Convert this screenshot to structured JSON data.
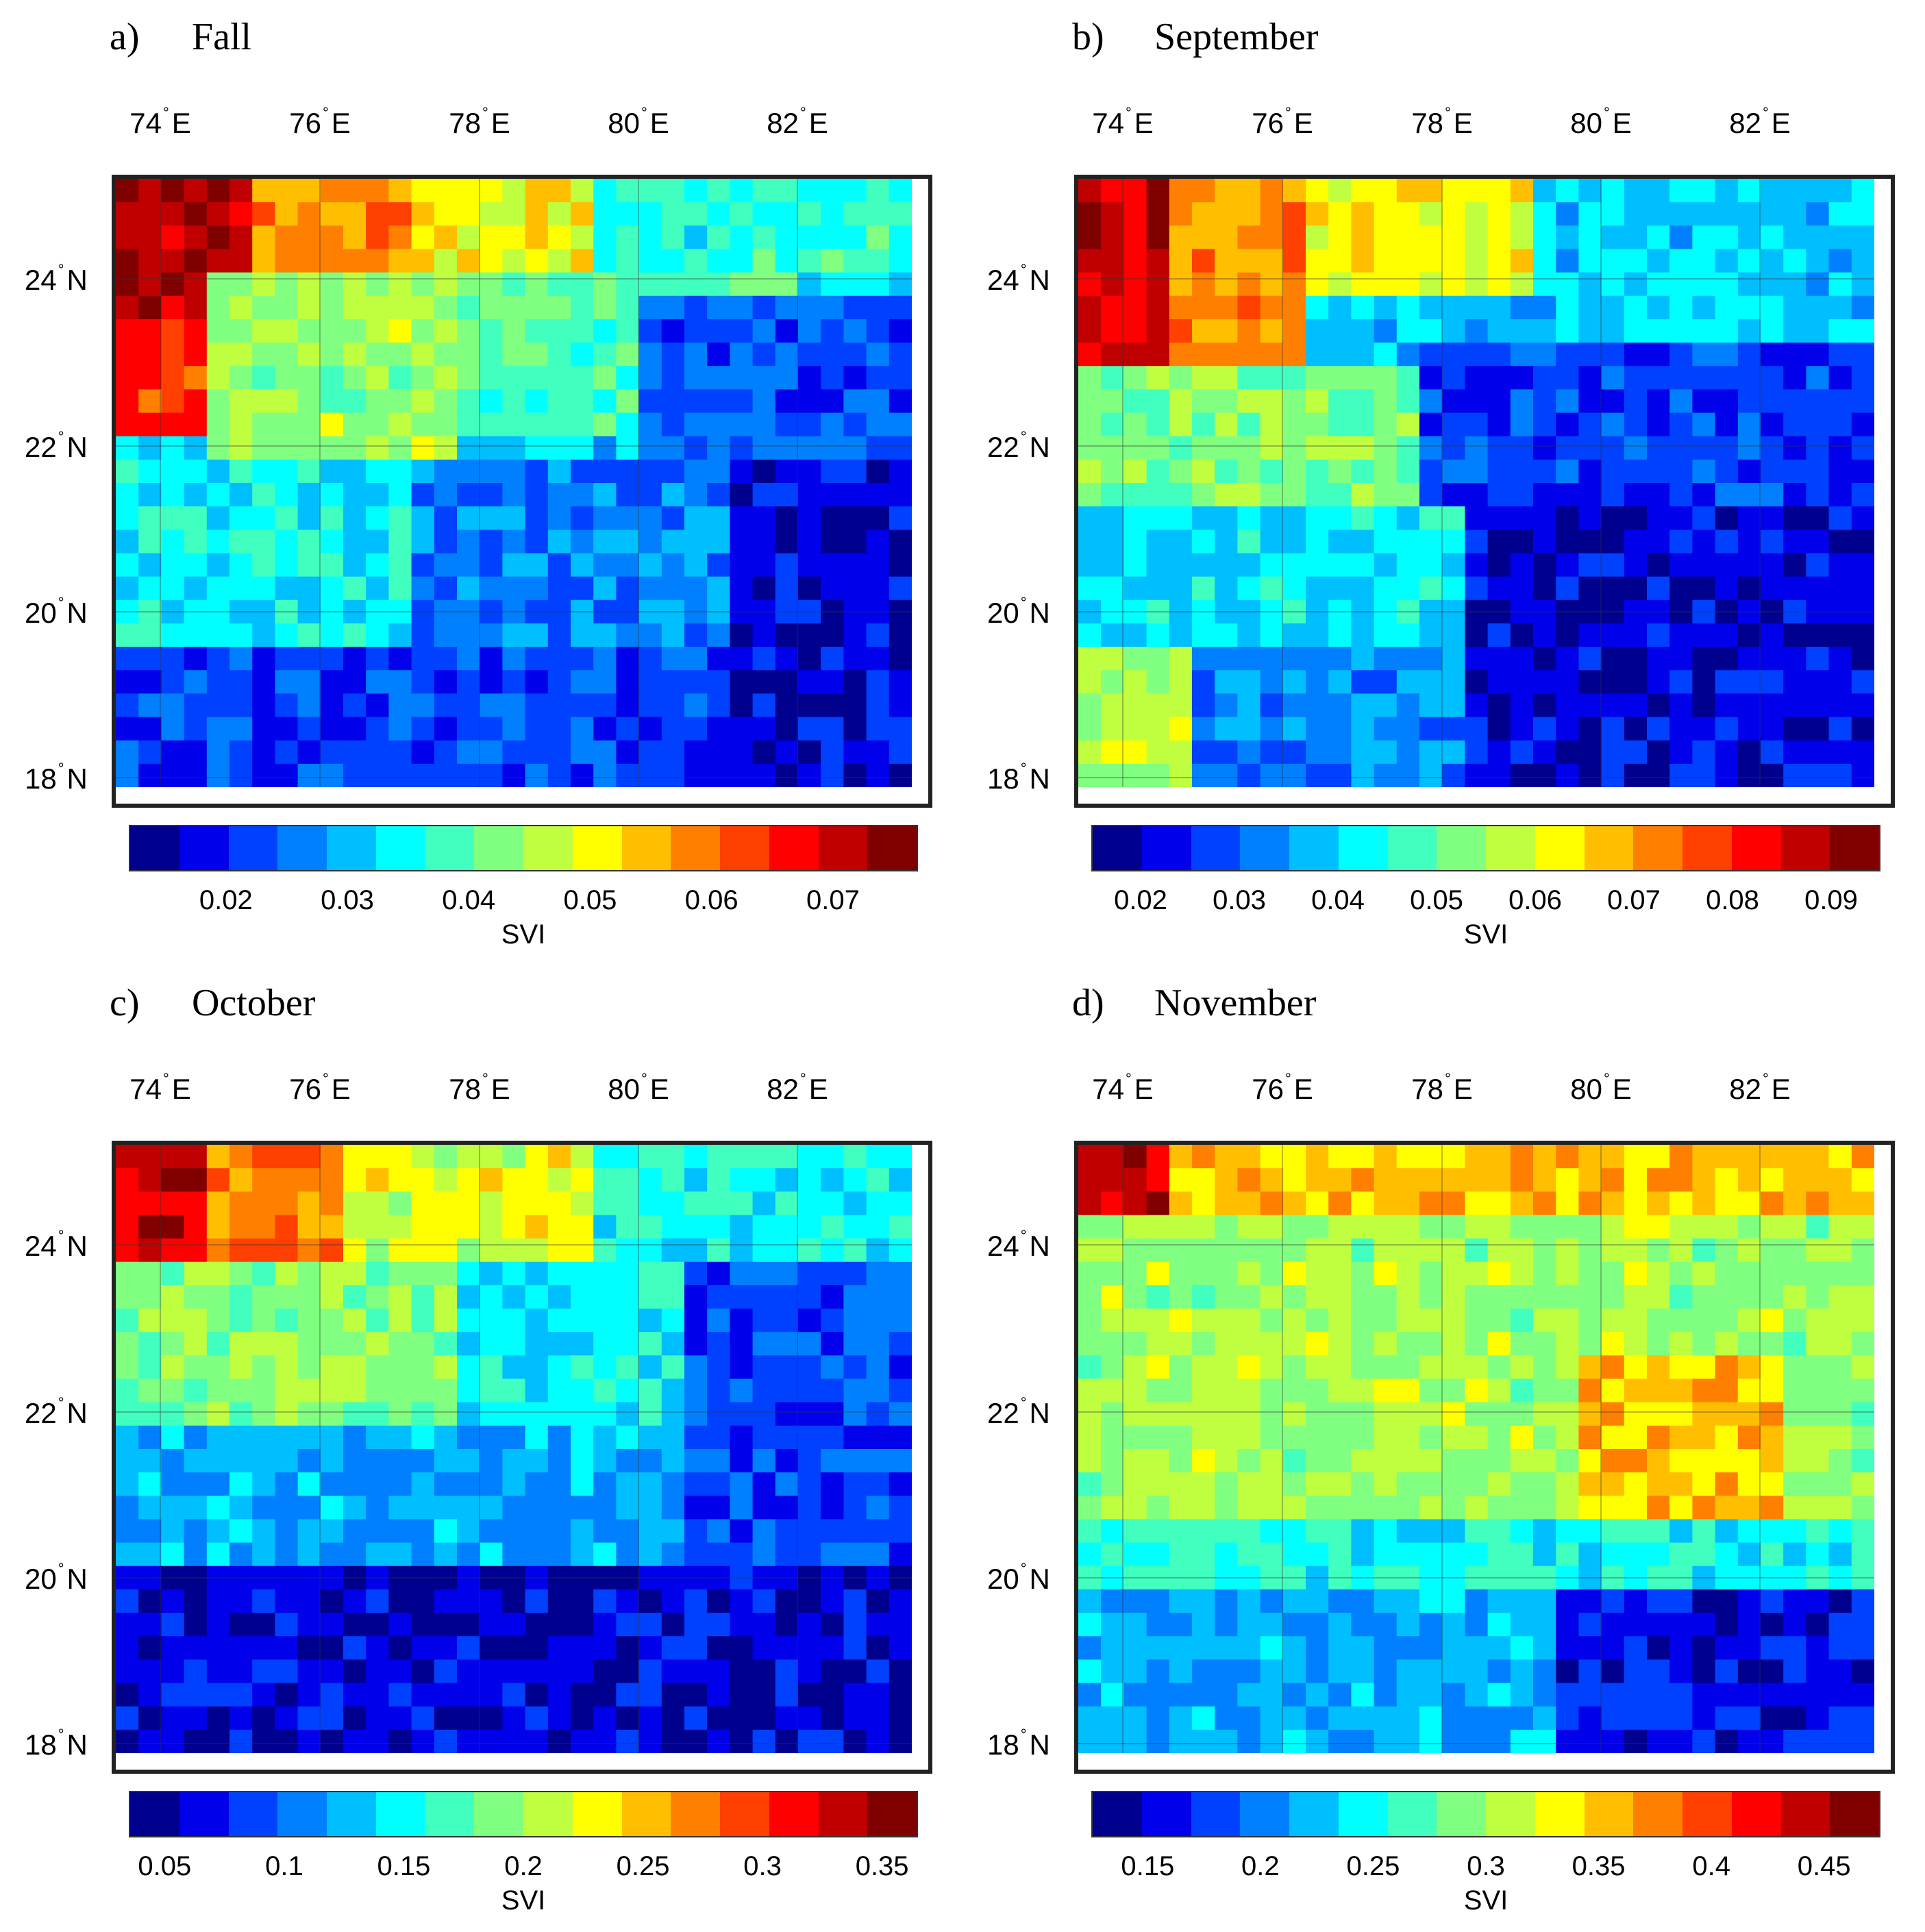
{
  "chart_data": [
    {
      "type": "heatmap",
      "panel_letter": "a)",
      "title": "Fall",
      "x_ticks": [
        "74",
        "76",
        "78",
        "80",
        "82"
      ],
      "x_unit": "E",
      "y_ticks": [
        "24",
        "22",
        "20",
        "18"
      ],
      "y_unit": "N",
      "colorbar_label": "SVI",
      "colorbar_ticks": [
        "0.02",
        "0.03",
        "0.04",
        "0.05",
        "0.06",
        "0.07"
      ],
      "colorbar_range": [
        0.012,
        0.077
      ],
      "pattern": "high in the north-west corner (~0.07), decreasing toward the south-east (~0.015)",
      "grid_regions": [
        {
          "rows": [
            0,
            5
          ],
          "cols": [
            0,
            5
          ],
          "level": 0.92
        },
        {
          "rows": [
            0,
            3
          ],
          "cols": [
            6,
            12
          ],
          "level": 0.7
        },
        {
          "rows": [
            0,
            3
          ],
          "cols": [
            13,
            20
          ],
          "level": 0.58
        },
        {
          "rows": [
            0,
            4
          ],
          "cols": [
            21,
            34
          ],
          "level": 0.38
        },
        {
          "rows": [
            6,
            10
          ],
          "cols": [
            0,
            3
          ],
          "level": 0.8
        },
        {
          "rows": [
            4,
            12
          ],
          "cols": [
            4,
            14
          ],
          "level": 0.5
        },
        {
          "rows": [
            4,
            10
          ],
          "cols": [
            15,
            22
          ],
          "level": 0.42
        },
        {
          "rows": [
            5,
            12
          ],
          "cols": [
            23,
            34
          ],
          "level": 0.18
        },
        {
          "rows": [
            12,
            20
          ],
          "cols": [
            0,
            12
          ],
          "level": 0.34
        },
        {
          "rows": [
            12,
            20
          ],
          "cols": [
            13,
            26
          ],
          "level": 0.22
        },
        {
          "rows": [
            12,
            25
          ],
          "cols": [
            27,
            34
          ],
          "level": 0.08
        },
        {
          "rows": [
            20,
            25
          ],
          "cols": [
            0,
            26
          ],
          "level": 0.16
        }
      ]
    },
    {
      "type": "heatmap",
      "panel_letter": "b)",
      "title": "September",
      "x_ticks": [
        "74",
        "76",
        "78",
        "80",
        "82"
      ],
      "x_unit": "E",
      "y_ticks": [
        "24",
        "22",
        "20",
        "18"
      ],
      "y_unit": "N",
      "colorbar_label": "SVI",
      "colorbar_ticks": [
        "0.02",
        "0.03",
        "0.04",
        "0.05",
        "0.06",
        "0.07",
        "0.08",
        "0.09"
      ],
      "colorbar_range": [
        0.015,
        0.095
      ],
      "pattern": "high in the north-west corner (~0.09), lowest in the south-east (~0.015)",
      "grid_regions": [
        {
          "rows": [
            0,
            8
          ],
          "cols": [
            0,
            3
          ],
          "level": 0.9
        },
        {
          "rows": [
            0,
            8
          ],
          "cols": [
            4,
            9
          ],
          "level": 0.7
        },
        {
          "rows": [
            0,
            4
          ],
          "cols": [
            10,
            19
          ],
          "level": 0.58
        },
        {
          "rows": [
            0,
            6
          ],
          "cols": [
            20,
            34
          ],
          "level": 0.3
        },
        {
          "rows": [
            8,
            14
          ],
          "cols": [
            0,
            14
          ],
          "level": 0.46
        },
        {
          "rows": [
            7,
            14
          ],
          "cols": [
            15,
            34
          ],
          "level": 0.14
        },
        {
          "rows": [
            14,
            20
          ],
          "cols": [
            0,
            16
          ],
          "level": 0.32
        },
        {
          "rows": [
            14,
            25
          ],
          "cols": [
            17,
            34
          ],
          "level": 0.08
        },
        {
          "rows": [
            20,
            25
          ],
          "cols": [
            0,
            4
          ],
          "level": 0.52
        },
        {
          "rows": [
            20,
            25
          ],
          "cols": [
            5,
            16
          ],
          "level": 0.24
        }
      ]
    },
    {
      "type": "heatmap",
      "panel_letter": "c)",
      "title": "October",
      "x_ticks": [
        "74",
        "76",
        "78",
        "80",
        "82"
      ],
      "x_unit": "E",
      "y_ticks": [
        "24",
        "22",
        "20",
        "18"
      ],
      "y_unit": "N",
      "colorbar_label": "SVI",
      "colorbar_ticks": [
        "0.05",
        "0.1",
        "0.15",
        "0.2",
        "0.25",
        "0.3",
        "0.35"
      ],
      "colorbar_range": [
        0.035,
        0.365
      ],
      "pattern": "high in the north-west corner (~0.33), low across the south (~0.05)",
      "grid_regions": [
        {
          "rows": [
            0,
            8
          ],
          "cols": [
            0,
            3
          ],
          "level": 0.88
        },
        {
          "rows": [
            0,
            4
          ],
          "cols": [
            4,
            9
          ],
          "level": 0.72
        },
        {
          "rows": [
            0,
            4
          ],
          "cols": [
            10,
            20
          ],
          "level": 0.56
        },
        {
          "rows": [
            0,
            4
          ],
          "cols": [
            21,
            34
          ],
          "level": 0.36
        },
        {
          "rows": [
            5,
            12
          ],
          "cols": [
            0,
            14
          ],
          "level": 0.48
        },
        {
          "rows": [
            5,
            12
          ],
          "cols": [
            15,
            24
          ],
          "level": 0.34
        },
        {
          "rows": [
            5,
            18
          ],
          "cols": [
            25,
            34
          ],
          "level": 0.16
        },
        {
          "rows": [
            12,
            18
          ],
          "cols": [
            0,
            24
          ],
          "level": 0.26
        },
        {
          "rows": [
            18,
            25
          ],
          "cols": [
            0,
            34
          ],
          "level": 0.08
        }
      ]
    },
    {
      "type": "heatmap",
      "panel_letter": "d)",
      "title": "November",
      "x_ticks": [
        "74",
        "76",
        "78",
        "80",
        "82"
      ],
      "x_unit": "E",
      "y_ticks": [
        "24",
        "22",
        "20",
        "18"
      ],
      "y_unit": "N",
      "colorbar_label": "SVI",
      "colorbar_ticks": [
        "0.15",
        "0.2",
        "0.25",
        "0.3",
        "0.35",
        "0.4",
        "0.45"
      ],
      "colorbar_range": [
        0.125,
        0.475
      ],
      "pattern": "high in the north-west corner (~0.45), mid values (~0.3) across centre, low in the south (~0.15)",
      "grid_regions": [
        {
          "rows": [
            0,
            7
          ],
          "cols": [
            0,
            3
          ],
          "level": 0.88
        },
        {
          "rows": [
            0,
            3
          ],
          "cols": [
            4,
            34
          ],
          "level": 0.64
        },
        {
          "rows": [
            3,
            16
          ],
          "cols": [
            0,
            34
          ],
          "level": 0.5
        },
        {
          "rows": [
            9,
            15
          ],
          "cols": [
            22,
            30
          ],
          "level": 0.66
        },
        {
          "rows": [
            16,
            19
          ],
          "cols": [
            0,
            34
          ],
          "level": 0.36
        },
        {
          "rows": [
            19,
            25
          ],
          "cols": [
            0,
            20
          ],
          "level": 0.26
        },
        {
          "rows": [
            19,
            25
          ],
          "cols": [
            21,
            34
          ],
          "level": 0.1
        }
      ]
    }
  ],
  "colormap": [
    "#00008f",
    "#0000ea",
    "#0040ff",
    "#0080ff",
    "#00bfff",
    "#00ffff",
    "#40ffbf",
    "#80ff80",
    "#bfff40",
    "#ffff00",
    "#ffbf00",
    "#ff8000",
    "#ff4000",
    "#ff0000",
    "#c00000",
    "#800000"
  ]
}
